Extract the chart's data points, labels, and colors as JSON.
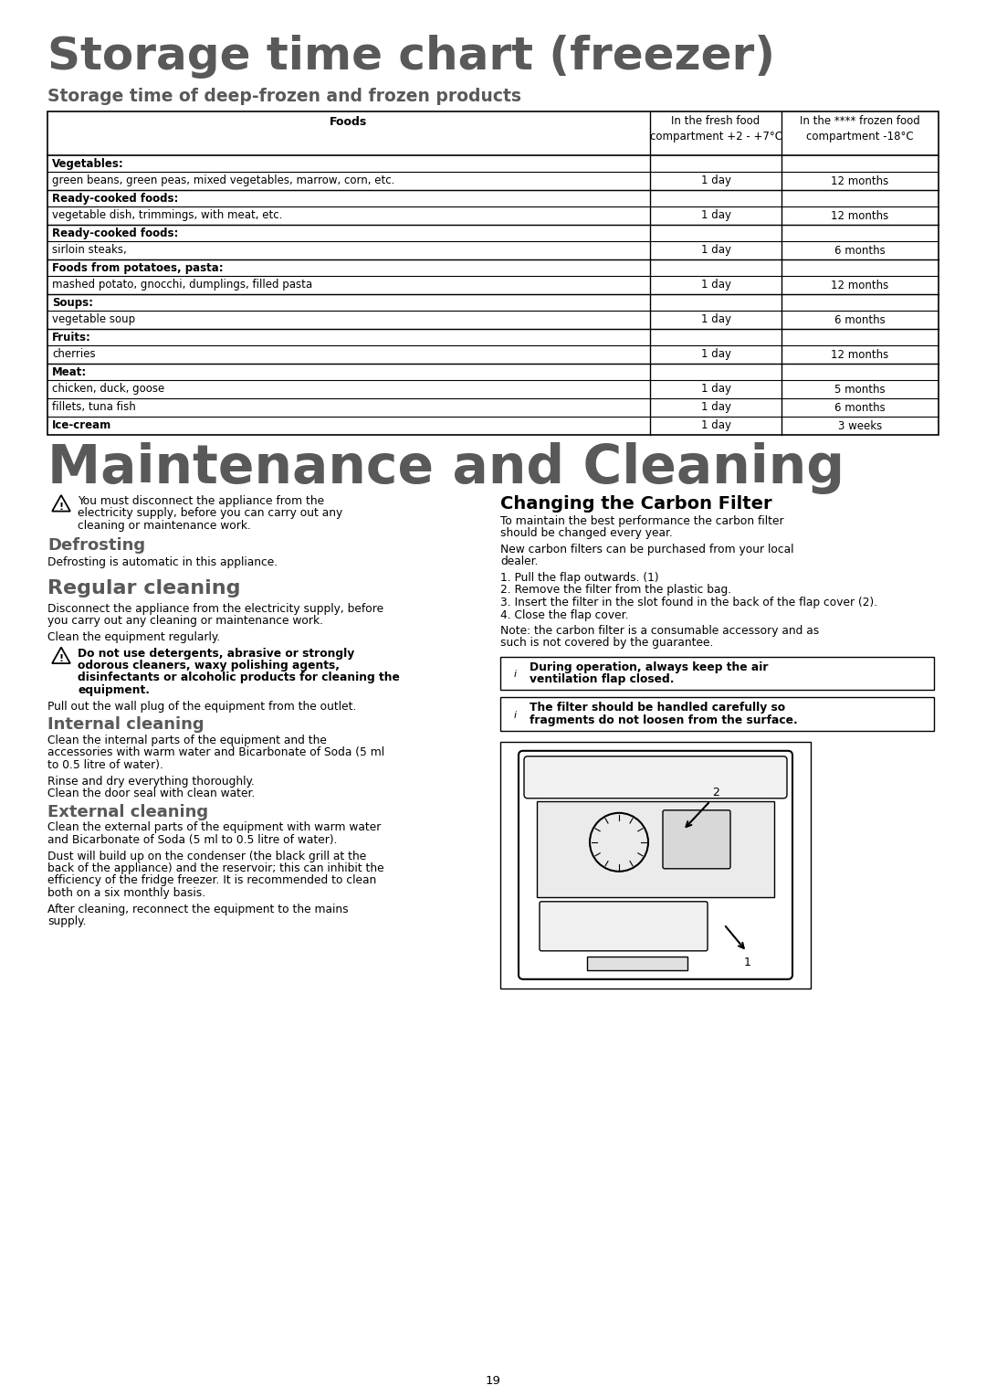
{
  "title": "Storage time chart (freezer)",
  "subtitle": "Storage time of deep-frozen and frozen products",
  "table_header_col1": "Foods",
  "table_header_col2": "In the fresh food\ncompartment +2 - +7°C",
  "table_header_col3": "In the **** frozen food\ncompartment -18°C",
  "table_rows": [
    [
      "bold",
      "Vegetables:",
      "",
      ""
    ],
    [
      "normal",
      "green beans, green peas, mixed vegetables, marrow, corn, etc.",
      "1 day",
      "12 months"
    ],
    [
      "bold",
      "Ready-cooked foods:",
      "",
      ""
    ],
    [
      "normal",
      "vegetable dish, trimmings, with meat, etc.",
      "1 day",
      "12 months"
    ],
    [
      "bold",
      "Ready-cooked foods:",
      "",
      ""
    ],
    [
      "normal",
      "sirloin steaks,",
      "1 day",
      "6 months"
    ],
    [
      "bold",
      "Foods from potatoes, pasta:",
      "",
      ""
    ],
    [
      "normal",
      "mashed potato, gnocchi, dumplings, filled pasta",
      "1 day",
      "12 months"
    ],
    [
      "bold",
      "Soups:",
      "",
      ""
    ],
    [
      "normal",
      "vegetable soup",
      "1 day",
      "6 months"
    ],
    [
      "bold",
      "Fruits:",
      "",
      ""
    ],
    [
      "normal",
      "cherries",
      "1 day",
      "12 months"
    ],
    [
      "bold",
      "Meat:",
      "",
      ""
    ],
    [
      "normal",
      "chicken, duck, goose",
      "1 day",
      "5 months"
    ],
    [
      "normal",
      "fillets, tuna fish",
      "1 day",
      "6 months"
    ],
    [
      "bold_italic",
      "Ice-cream",
      "1 day",
      "3 weeks"
    ]
  ],
  "section2_title": "Maintenance and Cleaning",
  "warning_text_lines": [
    "You must disconnect the appliance from the",
    "electricity supply, before you can carry out any",
    "cleaning or maintenance work."
  ],
  "defrosting_title": "Defrosting",
  "defrosting_text": "Defrosting is automatic in this appliance.",
  "regular_cleaning_title": "Regular cleaning",
  "regular_cleaning_text1_lines": [
    "Disconnect the appliance from the electricity supply, before",
    "you carry out any cleaning or maintenance work."
  ],
  "regular_cleaning_text2": "Clean the equipment regularly.",
  "regular_cleaning_warning_lines": [
    "Do not use detergents, abrasive or strongly",
    "odorous cleaners, waxy polishing agents,",
    "disinfectants or alcoholic products for cleaning the",
    "equipment."
  ],
  "regular_cleaning_text3": "Pull out the wall plug of the equipment from the outlet.",
  "internal_cleaning_title": "Internal cleaning",
  "internal_cleaning_text1_lines": [
    "Clean the internal parts of the equipment and the",
    "accessories with warm water and Bicarbonate of Soda (5 ml",
    "to 0.5 litre of water)."
  ],
  "internal_cleaning_text2": "Rinse and dry everything thoroughly.",
  "internal_cleaning_text3": "Clean the door seal with clean water.",
  "external_cleaning_title": "External cleaning",
  "external_cleaning_text1_lines": [
    "Clean the external parts of the equipment with warm water",
    "and Bicarbonate of Soda (5 ml to 0.5 litre of water)."
  ],
  "external_cleaning_text2_lines": [
    "Dust will build up on the condenser (the black grill at the",
    "back of the appliance) and the reservoir; this can inhibit the",
    "efficiency of the fridge freezer. It is recommended to clean",
    "both on a six monthly basis."
  ],
  "external_cleaning_text3_lines": [
    "After cleaning, reconnect the equipment to the mains",
    "supply."
  ],
  "carbon_filter_title": "Changing the Carbon Filter",
  "carbon_filter_text1_lines": [
    "To maintain the best performance the carbon filter",
    "should be changed every year."
  ],
  "carbon_filter_text2_lines": [
    "New carbon filters can be purchased from your local",
    "dealer."
  ],
  "carbon_filter_steps": [
    "1. Pull the flap outwards. (1)",
    "2. Remove the filter from the plastic bag.",
    "3. Insert the filter in the slot found in the back of the flap cover (2).",
    "4. Close the flap cover."
  ],
  "carbon_filter_note_lines": [
    "Note: the carbon filter is a consumable accessory and as",
    "such is not covered by the guarantee."
  ],
  "info_text1_lines": [
    "During operation, always keep the air",
    "ventilation flap closed."
  ],
  "info_text2_lines": [
    "The filter should be handled carefully so",
    "fragments do not loosen from the surface."
  ],
  "page_number": "19",
  "bg_color": "#ffffff",
  "title_color": "#595959",
  "subtitle_color": "#595959",
  "section2_color": "#595959",
  "heading_color": "#595959",
  "text_color": "#000000"
}
